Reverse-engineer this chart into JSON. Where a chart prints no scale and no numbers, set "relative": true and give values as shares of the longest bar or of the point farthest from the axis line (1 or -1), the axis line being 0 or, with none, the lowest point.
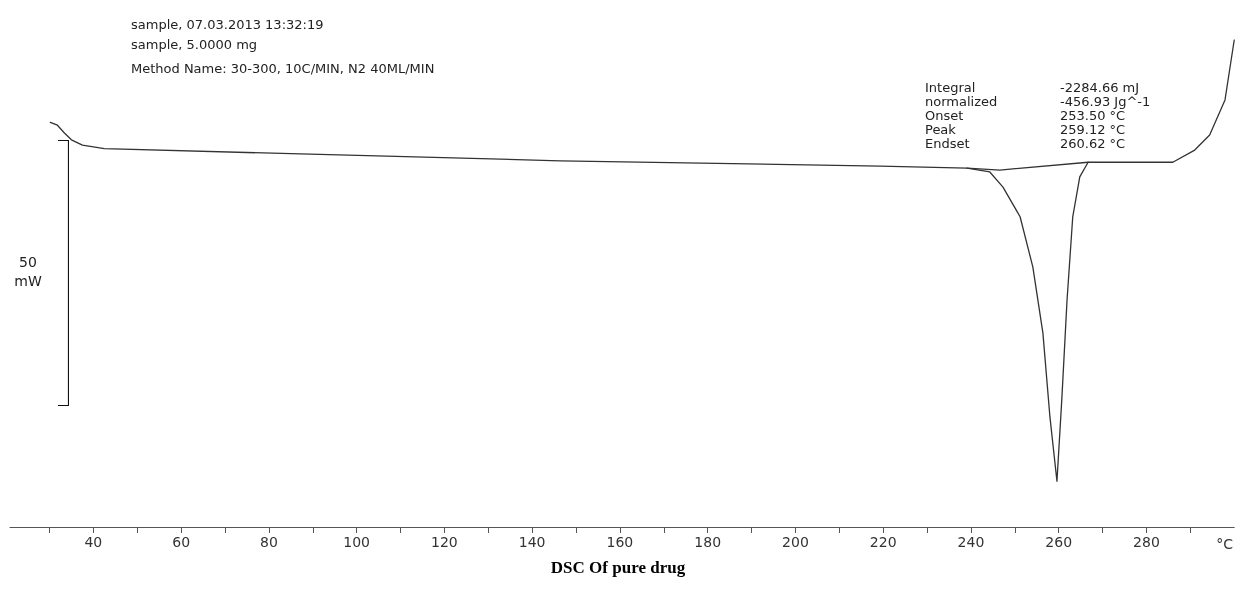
{
  "chart_data": {
    "type": "line",
    "title": "DSC Of pure drug",
    "xlabel": "°C",
    "relative": true,
    "grid": false,
    "marker": "none",
    "line_style": "solid",
    "xlim": [
      21,
      300
    ],
    "xticks": [
      {
        "value": 30,
        "label": null
      },
      40,
      {
        "value": 50,
        "label": null
      },
      60,
      {
        "value": 70,
        "label": null
      },
      80,
      {
        "value": 90,
        "label": null
      },
      100,
      {
        "value": 110,
        "label": null
      },
      120,
      {
        "value": 130,
        "label": null
      },
      140,
      {
        "value": 150,
        "label": null
      },
      160,
      {
        "value": 170,
        "label": null
      },
      180,
      {
        "value": 190,
        "label": null
      },
      200,
      {
        "value": 210,
        "label": null
      },
      220,
      {
        "value": 230,
        "label": null
      },
      240,
      {
        "value": 250,
        "label": null
      },
      260,
      {
        "value": 270,
        "label": null
      },
      280,
      {
        "value": 290,
        "label": null
      }
    ],
    "series": [
      {
        "color": "#333333",
        "x": [
          30.2,
          31.8,
          33.4,
          35.0,
          37.5,
          42.5,
          87.2,
          146.4,
          219.3,
          239.1,
          244.3,
          247.3,
          251.2,
          254.1,
          256.4,
          258.0,
          259.6,
          260.7,
          261.9,
          263.2,
          264.8,
          266.7,
          272.3,
          286.0,
          291.0,
          294.4,
          297.9,
          300
        ],
        "values": [
          0.831,
          0.825,
          0.809,
          0.795,
          0.784,
          0.777,
          0.766,
          0.752,
          0.741,
          0.737,
          0.729,
          0.698,
          0.637,
          0.534,
          0.398,
          0.226,
          0.094,
          0.261,
          0.466,
          0.637,
          0.719,
          0.749,
          0.749,
          0.749,
          0.774,
          0.805,
          0.877,
          1.0
        ]
      },
      {
        "color": "#333333",
        "x": [
          239.1,
          246.6,
          266.7
        ],
        "values": [
          0.737,
          0.733,
          0.749
        ]
      }
    ],
    "annotations": [
      "sample, 07.03.2013 13:32:19",
      "sample, 5.0000 mg",
      "Method Name: 30-300, 10C/MIN, N2 40ML/MIN",
      "Integral",
      "-2284.66 mJ",
      "normalized",
      "-456.93 Jg^-1",
      "Onset",
      "253.50 °C",
      "Peak",
      "259.12 °C",
      "Endset",
      "260.62 °C",
      "50\nmW"
    ]
  }
}
